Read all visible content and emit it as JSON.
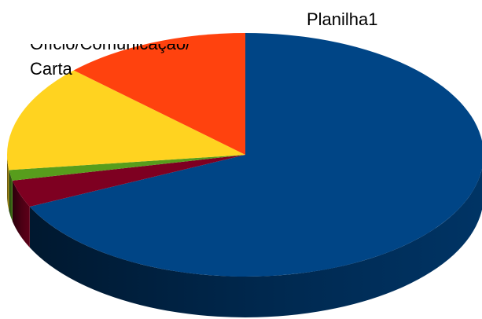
{
  "chart_data": {
    "type": "pie",
    "title": "Planilha1",
    "label_line1": "Ofício/Comunicação/",
    "label_line2": "Carta",
    "slices": [
      {
        "label": "Ofício/Comunicação/Carta",
        "value": 68.0,
        "color": "#004586"
      },
      {
        "label": "",
        "value": 3.6,
        "color": "#7e0021"
      },
      {
        "label": "",
        "value": 1.4,
        "color": "#579d1c"
      },
      {
        "label": "",
        "value": 14.2,
        "color": "#ffd320"
      },
      {
        "label": "",
        "value": 12.8,
        "color": "#ff420e"
      }
    ],
    "style": "3d"
  }
}
